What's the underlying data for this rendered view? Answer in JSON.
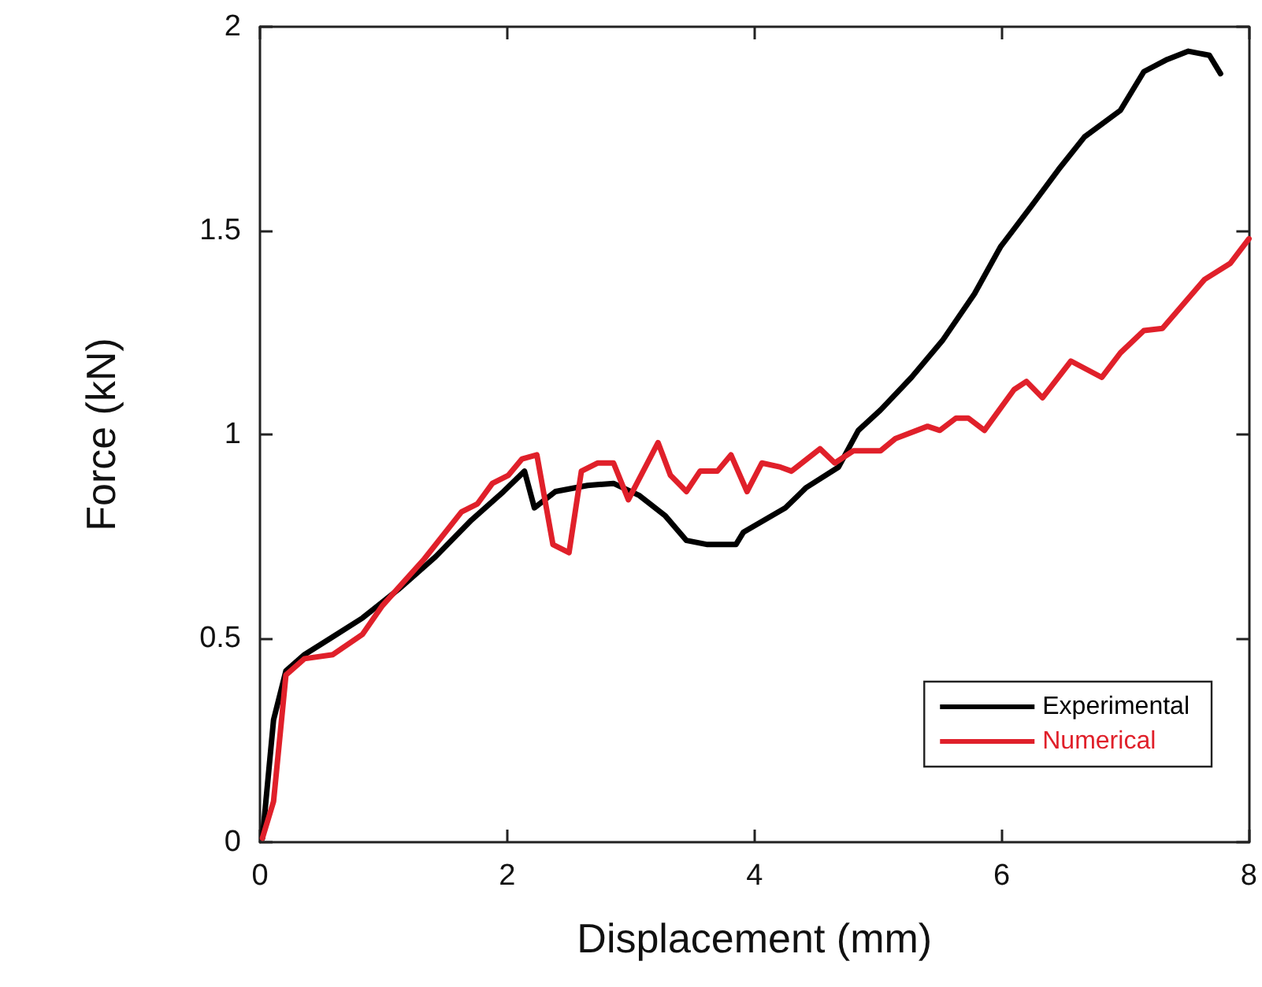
{
  "chart_data": {
    "type": "line",
    "xlabel": "Displacement (mm)",
    "ylabel": "Force (kN)",
    "xlim": [
      0,
      8
    ],
    "xticks": [
      0,
      2,
      4,
      6,
      8
    ],
    "ylim": [
      0,
      2
    ],
    "yticks": [
      0,
      0.5,
      1,
      1.5,
      2
    ],
    "grid": false,
    "legend": "bottom right",
    "marker": "none",
    "line_style": "solid",
    "series": [
      {
        "name": "Experimental",
        "color": "#000000",
        "x": [
          0.02,
          0.11,
          0.21,
          0.36,
          0.57,
          0.83,
          1.12,
          1.42,
          1.71,
          1.97,
          2.14,
          2.22,
          2.39,
          2.65,
          2.86,
          3.07,
          3.28,
          3.45,
          3.62,
          3.85,
          3.91,
          4.25,
          4.42,
          4.68,
          4.84,
          5.02,
          5.27,
          5.52,
          5.78,
          5.99,
          6.24,
          6.46,
          6.67,
          6.96,
          7.15,
          7.34,
          7.51,
          7.68,
          7.77
        ],
        "values": [
          0.01,
          0.3,
          0.42,
          0.46,
          0.5,
          0.55,
          0.62,
          0.7,
          0.79,
          0.86,
          0.91,
          0.82,
          0.86,
          0.875,
          0.88,
          0.85,
          0.8,
          0.74,
          0.73,
          0.73,
          0.76,
          0.82,
          0.87,
          0.92,
          1.01,
          1.06,
          1.14,
          1.23,
          1.345,
          1.46,
          1.56,
          1.65,
          1.73,
          1.795,
          1.89,
          1.92,
          1.94,
          1.93,
          1.885
        ]
      },
      {
        "name": "Numerical",
        "color": "#e0202a",
        "x": [
          0.02,
          0.11,
          0.21,
          0.36,
          0.59,
          0.83,
          0.99,
          1.33,
          1.63,
          1.76,
          1.88,
          2.01,
          2.12,
          2.24,
          2.37,
          2.5,
          2.6,
          2.73,
          2.86,
          2.98,
          3.22,
          3.32,
          3.45,
          3.56,
          3.7,
          3.81,
          3.94,
          4.06,
          4.21,
          4.3,
          4.53,
          4.65,
          4.8,
          5.02,
          5.14,
          5.4,
          5.5,
          5.63,
          5.73,
          5.86,
          6.1,
          6.2,
          6.33,
          6.56,
          6.81,
          6.96,
          7.15,
          7.3,
          7.64,
          7.85,
          8.0
        ],
        "values": [
          0.01,
          0.1,
          0.41,
          0.45,
          0.46,
          0.51,
          0.58,
          0.695,
          0.81,
          0.83,
          0.88,
          0.9,
          0.94,
          0.95,
          0.73,
          0.71,
          0.91,
          0.93,
          0.93,
          0.84,
          0.98,
          0.9,
          0.86,
          0.91,
          0.91,
          0.95,
          0.86,
          0.93,
          0.92,
          0.91,
          0.965,
          0.93,
          0.96,
          0.96,
          0.99,
          1.02,
          1.01,
          1.04,
          1.04,
          1.01,
          1.11,
          1.13,
          1.09,
          1.18,
          1.14,
          1.2,
          1.255,
          1.26,
          1.38,
          1.42,
          1.48
        ]
      }
    ]
  }
}
